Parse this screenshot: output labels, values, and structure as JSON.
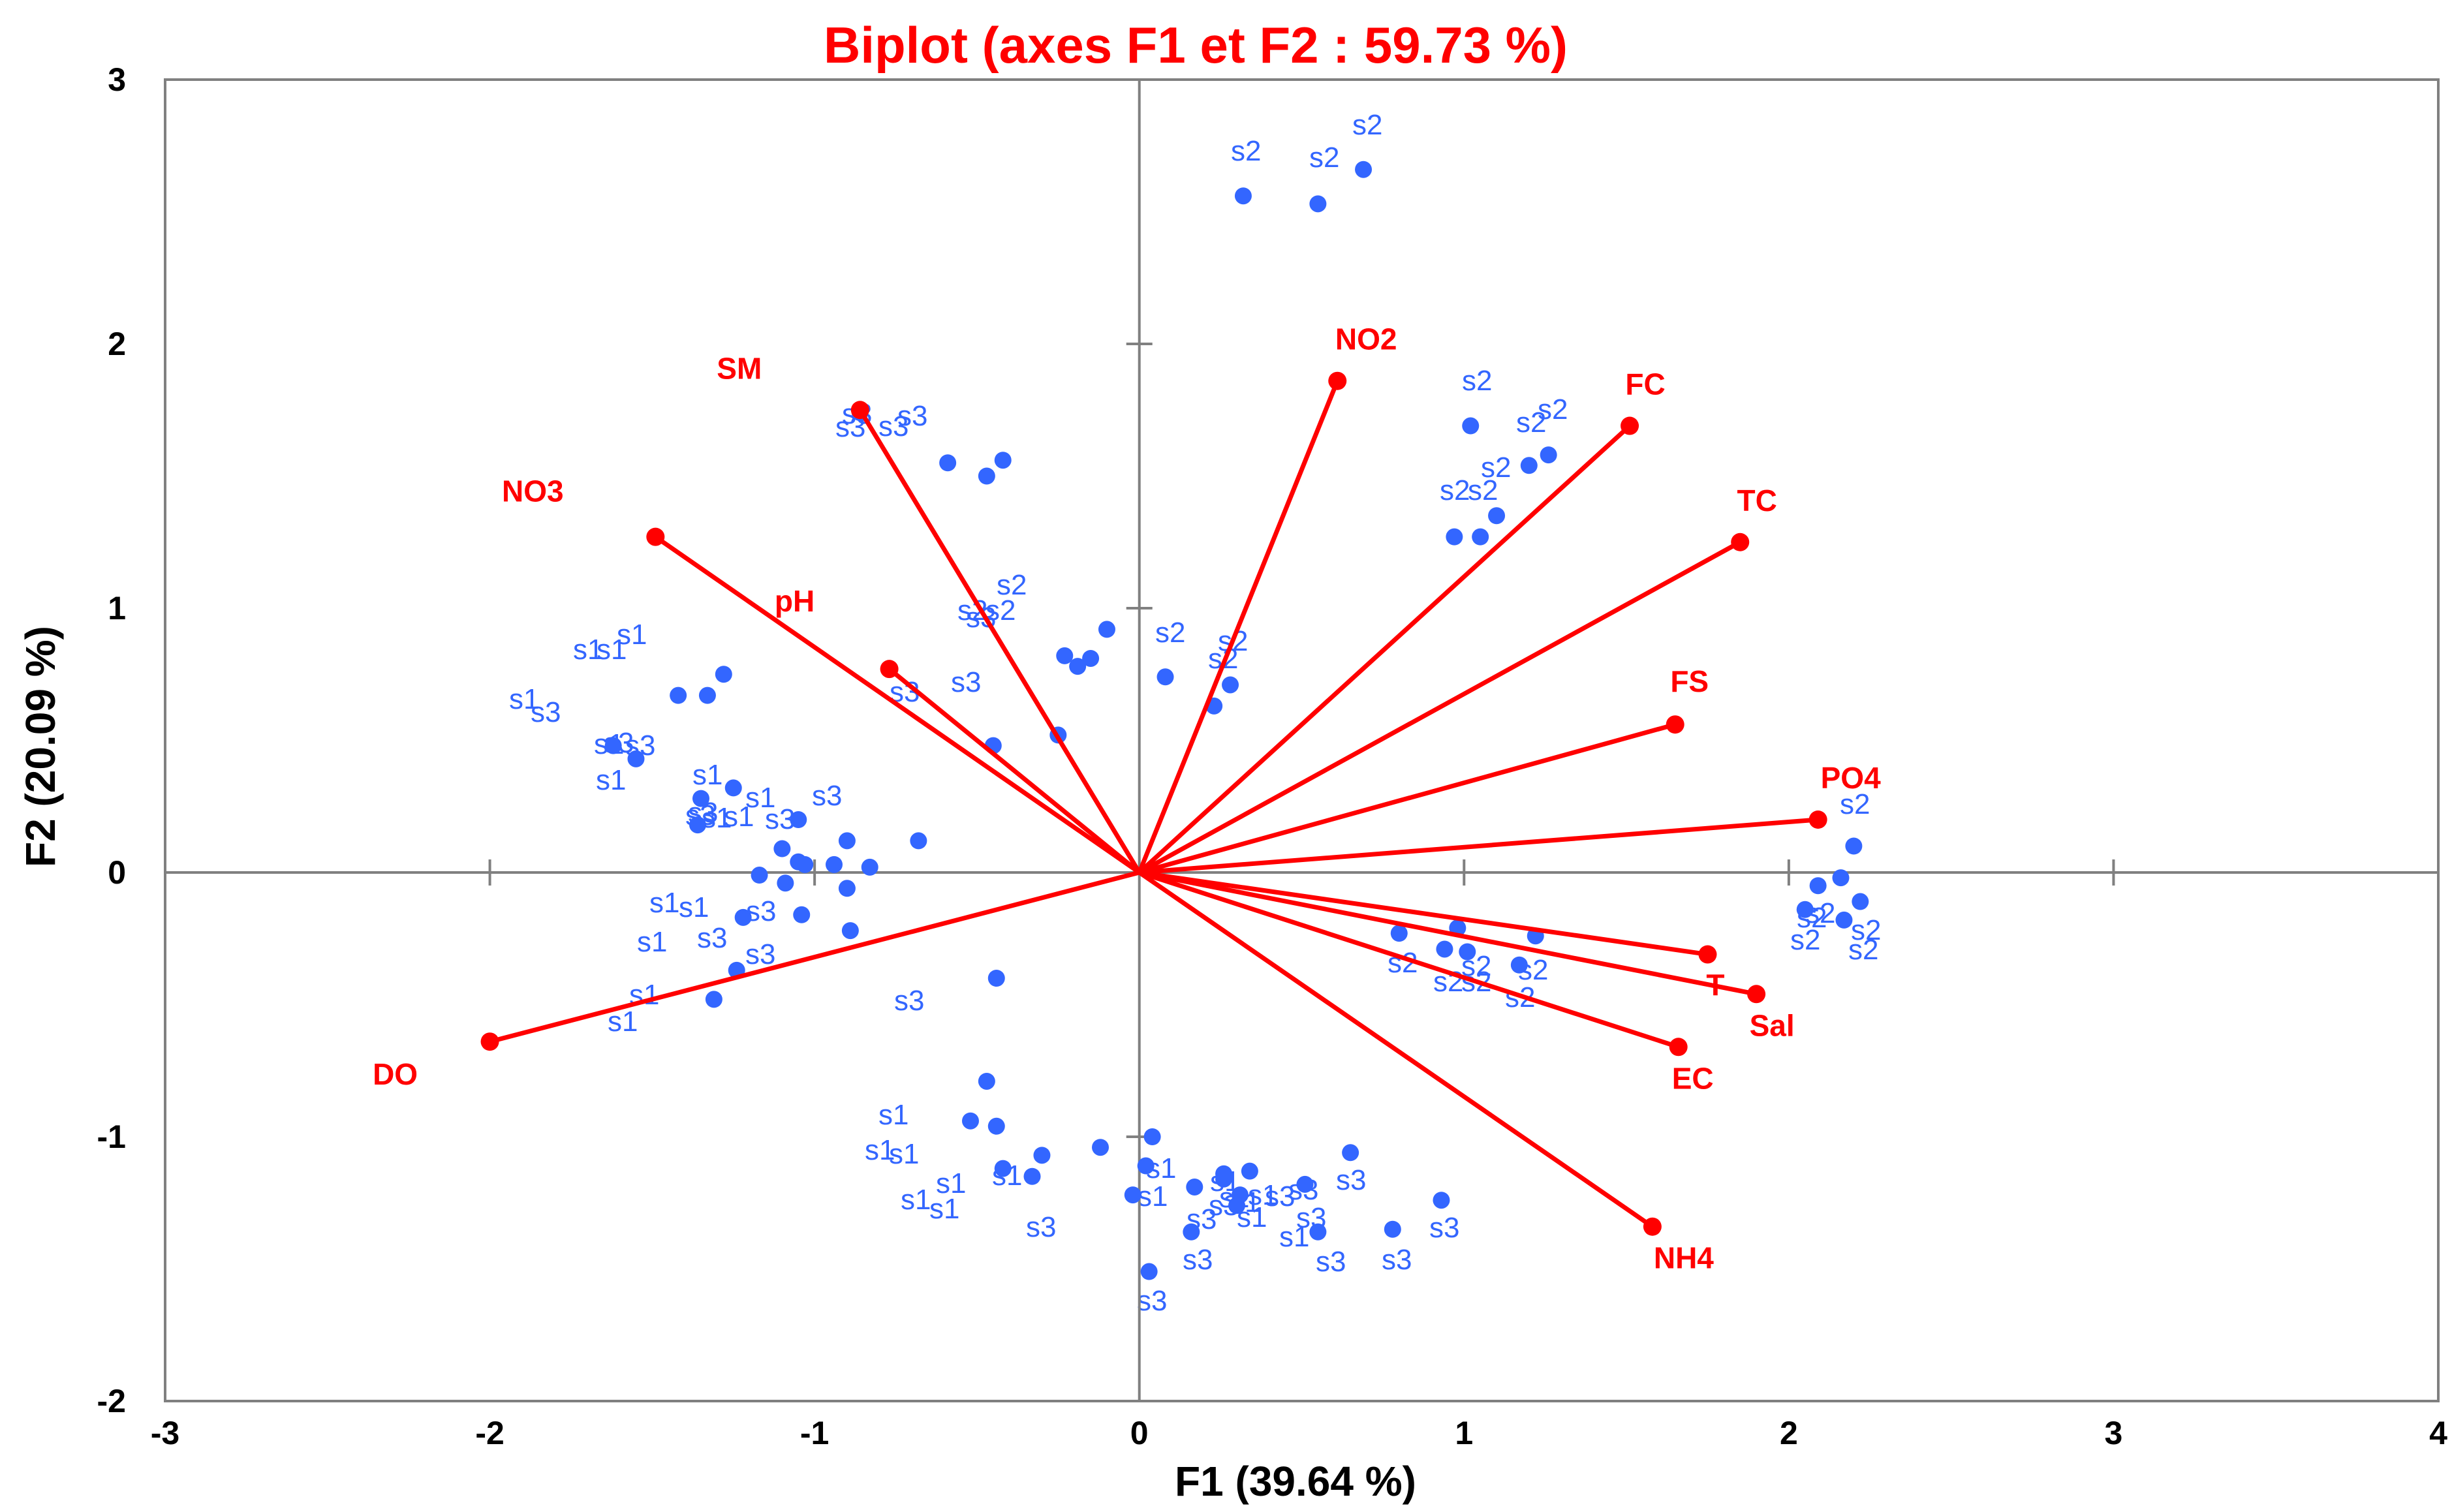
{
  "chart_data": {
    "type": "scatter",
    "subtype": "pca-biplot",
    "title": "Biplot (axes F1 et F2 : 59.73 %)",
    "xlabel": "F1 (39.64 %)",
    "ylabel": "F2 (20.09 %)",
    "xlim": [
      -3,
      4
    ],
    "ylim": [
      -2,
      3
    ],
    "xticks": [
      "-3",
      "-2",
      "-1",
      "0",
      "1",
      "2",
      "3",
      "4"
    ],
    "yticks": [
      "-2",
      "-1",
      "0",
      "1",
      "2",
      "3"
    ],
    "grid": false,
    "colors": {
      "title": "#ff0000",
      "variables": "#ff0000",
      "observations": "#3366ff",
      "labels": "#3366ff",
      "axes": "#808080",
      "text": "#000000"
    },
    "variables": [
      {
        "name": "NO2",
        "x": 0.61,
        "y": 1.86
      },
      {
        "name": "FC",
        "x": 1.51,
        "y": 1.69
      },
      {
        "name": "TC",
        "x": 1.85,
        "y": 1.25
      },
      {
        "name": "FS",
        "x": 1.65,
        "y": 0.56
      },
      {
        "name": "PO4",
        "x": 2.09,
        "y": 0.2
      },
      {
        "name": "T",
        "x": 1.75,
        "y": -0.31
      },
      {
        "name": "Sal",
        "x": 1.9,
        "y": -0.46
      },
      {
        "name": "EC",
        "x": 1.66,
        "y": -0.66
      },
      {
        "name": "NH4",
        "x": 1.58,
        "y": -1.34
      },
      {
        "name": "DO",
        "x": -2.0,
        "y": -0.64
      },
      {
        "name": "NO3",
        "x": -1.49,
        "y": 1.27
      },
      {
        "name": "pH",
        "x": -0.77,
        "y": 0.77
      },
      {
        "name": "SM",
        "x": -0.86,
        "y": 1.75
      }
    ],
    "observations": [
      {
        "label": "s2",
        "x": 0.32,
        "y": 2.56
      },
      {
        "label": "s2",
        "x": 0.55,
        "y": 2.53
      },
      {
        "label": "s2",
        "x": 0.69,
        "y": 2.66
      },
      {
        "label": "s2",
        "x": 1.02,
        "y": 1.69
      },
      {
        "label": "s2",
        "x": 1.26,
        "y": 1.58
      },
      {
        "label": "s2",
        "x": 1.2,
        "y": 1.54
      },
      {
        "label": "s2",
        "x": 1.1,
        "y": 1.35
      },
      {
        "label": "s2",
        "x": 0.97,
        "y": 1.27
      },
      {
        "label": "s2",
        "x": 1.05,
        "y": 1.27
      },
      {
        "label": "s2",
        "x": 0.08,
        "y": 0.74
      },
      {
        "label": "s2",
        "x": 0.28,
        "y": 0.71
      },
      {
        "label": "s2",
        "x": 0.23,
        "y": 0.63
      },
      {
        "label": "s2",
        "x": -0.1,
        "y": 0.92
      },
      {
        "label": "s2",
        "x": -0.15,
        "y": 0.81
      },
      {
        "label": "s2",
        "x": -0.19,
        "y": 0.78
      },
      {
        "label": "s2",
        "x": -0.23,
        "y": 0.82
      },
      {
        "label": "s2",
        "x": 2.2,
        "y": 0.1
      },
      {
        "label": "s2",
        "x": 2.16,
        "y": -0.02
      },
      {
        "label": "s2",
        "x": 2.09,
        "y": -0.05
      },
      {
        "label": "s2",
        "x": 2.05,
        "y": -0.14
      },
      {
        "label": "s2",
        "x": 2.22,
        "y": -0.11
      },
      {
        "label": "s2",
        "x": 2.17,
        "y": -0.18
      },
      {
        "label": "s2",
        "x": 0.98,
        "y": -0.21
      },
      {
        "label": "s2",
        "x": 1.22,
        "y": -0.24
      },
      {
        "label": "s2",
        "x": 0.8,
        "y": -0.23
      },
      {
        "label": "s2",
        "x": 0.94,
        "y": -0.29
      },
      {
        "label": "s2",
        "x": 1.01,
        "y": -0.3
      },
      {
        "label": "s2",
        "x": 1.17,
        "y": -0.35
      },
      {
        "label": "s1",
        "x": -1.55,
        "y": 0.43
      },
      {
        "label": "s1",
        "x": -1.62,
        "y": 0.48
      },
      {
        "label": "s1",
        "x": -1.42,
        "y": 0.67
      },
      {
        "label": "s1",
        "x": -1.33,
        "y": 0.67
      },
      {
        "label": "s1",
        "x": -1.28,
        "y": 0.75
      },
      {
        "label": "s1",
        "x": -1.35,
        "y": 0.28
      },
      {
        "label": "s1",
        "x": -1.25,
        "y": 0.32
      },
      {
        "label": "s1",
        "x": -1.05,
        "y": 0.2
      },
      {
        "label": "s1",
        "x": -1.1,
        "y": 0.09
      },
      {
        "label": "s1",
        "x": -1.17,
        "y": -0.01
      },
      {
        "label": "s1",
        "x": -1.36,
        "y": 0.18
      },
      {
        "label": "s1",
        "x": -1.31,
        "y": -0.48
      },
      {
        "label": "s1",
        "x": -0.52,
        "y": -0.94
      },
      {
        "label": "s1",
        "x": -0.44,
        "y": -0.96
      },
      {
        "label": "s1",
        "x": -0.3,
        "y": -1.07
      },
      {
        "label": "s1",
        "x": -0.33,
        "y": -1.15
      },
      {
        "label": "s1",
        "x": -0.42,
        "y": -1.12
      },
      {
        "label": "s1",
        "x": -0.12,
        "y": -1.04
      },
      {
        "label": "s1",
        "x": 0.04,
        "y": -1.0
      },
      {
        "label": "s1",
        "x": 0.02,
        "y": -1.11
      },
      {
        "label": "s1",
        "x": -0.02,
        "y": -1.22
      },
      {
        "label": "s1",
        "x": 0.17,
        "y": -1.19
      },
      {
        "label": "s1",
        "x": 0.26,
        "y": -1.16
      },
      {
        "label": "s1",
        "x": 0.31,
        "y": -1.22
      },
      {
        "label": "s3",
        "x": -0.86,
        "y": 1.74
      },
      {
        "label": "s3",
        "x": -0.59,
        "y": 1.55
      },
      {
        "label": "s3",
        "x": -0.47,
        "y": 1.5
      },
      {
        "label": "s3",
        "x": -0.42,
        "y": 1.56
      },
      {
        "label": "s3",
        "x": -0.45,
        "y": 0.48
      },
      {
        "label": "s3",
        "x": -0.25,
        "y": 0.52
      },
      {
        "label": "s3",
        "x": -0.9,
        "y": 0.12
      },
      {
        "label": "s3",
        "x": -0.94,
        "y": 0.03
      },
      {
        "label": "s3",
        "x": -0.83,
        "y": 0.02
      },
      {
        "label": "s3",
        "x": -0.9,
        "y": -0.06
      },
      {
        "label": "s3",
        "x": -0.68,
        "y": 0.12
      },
      {
        "label": "s3",
        "x": -1.05,
        "y": 0.04
      },
      {
        "label": "s3",
        "x": -1.03,
        "y": 0.03
      },
      {
        "label": "s3",
        "x": -1.09,
        "y": -0.04
      },
      {
        "label": "s3",
        "x": -1.22,
        "y": -0.17
      },
      {
        "label": "s3",
        "x": -1.04,
        "y": -0.16
      },
      {
        "label": "s3",
        "x": -0.89,
        "y": -0.22
      },
      {
        "label": "s3",
        "x": -1.24,
        "y": -0.37
      },
      {
        "label": "s3",
        "x": -0.44,
        "y": -0.4
      },
      {
        "label": "s3",
        "x": -0.47,
        "y": -0.79
      },
      {
        "label": "s3",
        "x": 0.03,
        "y": -1.51
      },
      {
        "label": "s3",
        "x": 0.16,
        "y": -1.36
      },
      {
        "label": "s3",
        "x": 0.26,
        "y": -1.14
      },
      {
        "label": "s3",
        "x": 0.34,
        "y": -1.13
      },
      {
        "label": "s3",
        "x": 0.3,
        "y": -1.26
      },
      {
        "label": "s3",
        "x": 0.51,
        "y": -1.18
      },
      {
        "label": "s3",
        "x": 0.55,
        "y": -1.36
      },
      {
        "label": "s3",
        "x": 0.65,
        "y": -1.06
      },
      {
        "label": "s3",
        "x": 0.78,
        "y": -1.35
      },
      {
        "label": "s3",
        "x": 0.93,
        "y": -1.24
      }
    ]
  }
}
